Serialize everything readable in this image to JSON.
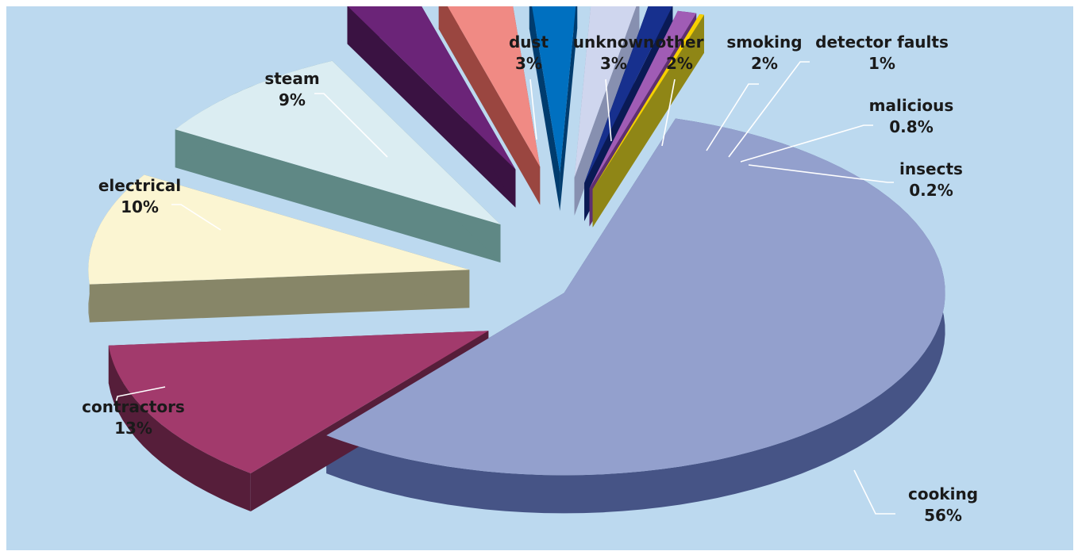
{
  "chart_data": {
    "type": "pie",
    "style": "3d-exploded",
    "title": "",
    "background_color": "#bcd9ef",
    "slices": [
      {
        "name": "cooking",
        "value_label": "56%",
        "value": 56,
        "color": "#93a0cd",
        "side_color": "#465486"
      },
      {
        "name": "contractors",
        "value_label": "13%",
        "value": 13,
        "color": "#a23a6c",
        "side_color": "#561e3a"
      },
      {
        "name": "electrical",
        "value_label": "10%",
        "value": 10,
        "color": "#fbf5d2",
        "side_color": "#878668"
      },
      {
        "name": "steam",
        "value_label": "9%",
        "value": 9,
        "color": "#dbedf2",
        "side_color": "#5f8885"
      },
      {
        "name": "dust",
        "value_label": "3%",
        "value": 3,
        "color": "#6b2478",
        "side_color": "#3a1242"
      },
      {
        "name": "unknown",
        "value_label": "3%",
        "value": 3,
        "color": "#f08a84",
        "side_color": "#9a4640"
      },
      {
        "name": "other",
        "value_label": "2%",
        "value": 2,
        "color": "#0070c0",
        "side_color": "#003c6e"
      },
      {
        "name": "smoking",
        "value_label": "2%",
        "value": 2,
        "color": "#cfd6ee",
        "side_color": "#8790b0"
      },
      {
        "name": "detector faults",
        "value_label": "1%",
        "value": 1,
        "color": "#17308e",
        "side_color": "#0a1a55"
      },
      {
        "name": "malicious",
        "value_label": "0.8%",
        "value": 0.8,
        "color": "#a05cb5",
        "side_color": "#5e2f70"
      },
      {
        "name": "insects",
        "value_label": "0.2%",
        "value": 0.2,
        "color": "#f6d000",
        "side_color": "#8f8616"
      }
    ]
  }
}
